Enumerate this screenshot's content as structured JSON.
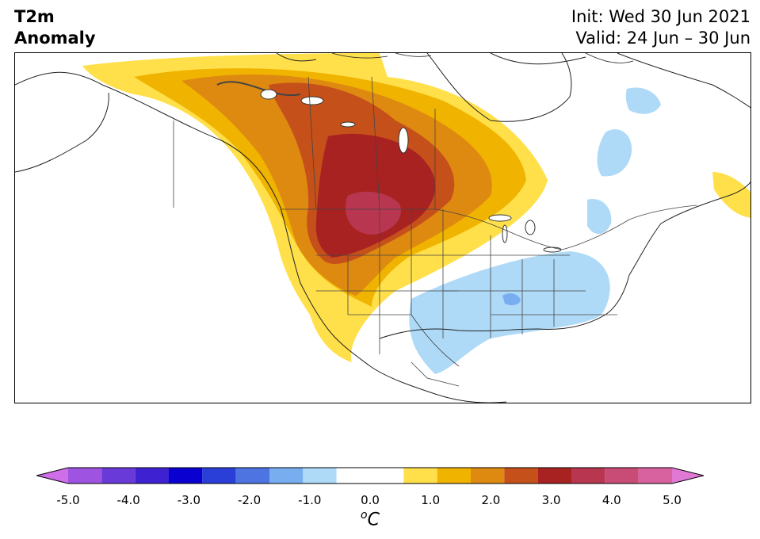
{
  "header": {
    "title_line1": "T2m",
    "title_line2": "Anomaly",
    "init": "Init: Wed 30 Jun 2021",
    "valid": "Valid: 24 Jun – 30 Jun"
  },
  "map": {
    "region": "North America",
    "colors": {
      "ocean": "#ffffff",
      "land": "#ffffff",
      "borders": "#444444"
    },
    "anomaly_features": [
      {
        "label": "warm anomaly core",
        "level": 4.0
      },
      {
        "label": "western Canada / northern plains heat",
        "level": 3.0
      },
      {
        "label": "south-central / southeast US cool",
        "level": -1.0
      },
      {
        "label": "northeast Canada cool",
        "level": -1.0
      }
    ]
  },
  "colorbar": {
    "levels": [
      -5.0,
      -4.5,
      -4.0,
      -3.5,
      -3.0,
      -2.5,
      -2.0,
      -1.5,
      -1.0,
      -0.5,
      0.5,
      1.0,
      1.5,
      2.0,
      2.5,
      3.0,
      3.5,
      4.0,
      4.5,
      5.0
    ],
    "colors": [
      "#ce6ee8",
      "#9e54e0",
      "#6a3ad8",
      "#3e22d2",
      "#0a00d0",
      "#2a3ed8",
      "#4e74e2",
      "#78aef0",
      "#aedaf8",
      "#ffffff",
      "#ffe04a",
      "#f0b400",
      "#de8a10",
      "#c6501a",
      "#a82222",
      "#b83650",
      "#c84c76",
      "#d862a0",
      "#e078d4"
    ],
    "extend_low_color": "#ce6ee8",
    "extend_high_color": "#e078d4",
    "ticks": [
      "-5.0",
      "-4.0",
      "-3.0",
      "-2.0",
      "-1.0",
      "0.0",
      "1.0",
      "2.0",
      "3.0",
      "4.0",
      "5.0"
    ],
    "units_base": "C",
    "units_sup": "o"
  }
}
